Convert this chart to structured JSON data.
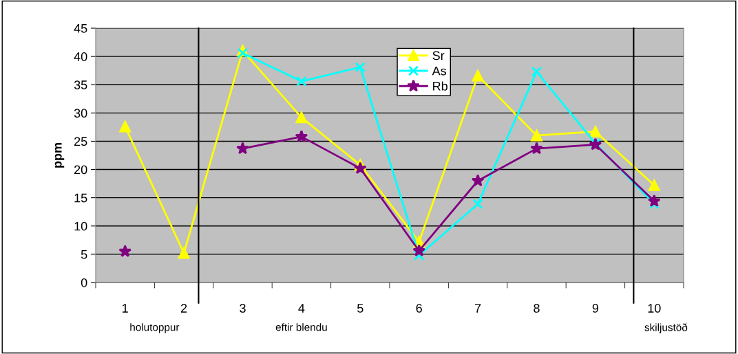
{
  "chart_data": {
    "type": "line",
    "ylabel": "ppm",
    "x": [
      1,
      2,
      3,
      4,
      5,
      6,
      7,
      8,
      9,
      10
    ],
    "series": [
      {
        "name": "Sr",
        "color": "#ffff00",
        "marker": "triangle",
        "values": [
          27.6,
          5.2,
          41.0,
          29.2,
          20.8,
          7.2,
          36.6,
          26.0,
          26.7,
          17.2
        ]
      },
      {
        "name": "As",
        "color": "#00ffff",
        "marker": "cross",
        "values": [
          null,
          null,
          40.6,
          35.6,
          38.1,
          4.8,
          13.9,
          37.3,
          24.6,
          13.9
        ]
      },
      {
        "name": "Rb",
        "color": "#800080",
        "marker": "star",
        "values": [
          5.5,
          null,
          23.7,
          25.8,
          20.2,
          5.6,
          18.0,
          23.7,
          24.4,
          14.4
        ]
      }
    ],
    "xlim": [
      0.5,
      10.5
    ],
    "xticks": [
      {
        "value": 0.5,
        "label": null
      },
      1,
      {
        "value": 1.5,
        "label": null
      },
      2,
      {
        "value": 2.5,
        "label": null
      },
      3,
      {
        "value": 3.5,
        "label": null
      },
      4,
      {
        "value": 4.5,
        "label": null
      },
      5,
      {
        "value": 5.5,
        "label": null
      },
      6,
      {
        "value": 6.5,
        "label": null
      },
      7,
      {
        "value": 7.5,
        "label": null
      },
      8,
      {
        "value": 8.5,
        "label": null
      },
      9,
      {
        "value": 9.5,
        "label": null
      },
      10,
      {
        "value": 10.5,
        "label": null
      }
    ],
    "ylim": [
      0,
      45
    ],
    "yticks": [
      0,
      5,
      10,
      15,
      20,
      25,
      30,
      35,
      40,
      45
    ],
    "grid": "y",
    "legend": "top",
    "ref_lines": [
      {
        "axis": "x",
        "value": 2.25,
        "color": "#000000"
      },
      {
        "axis": "x",
        "value": 9.65,
        "color": "#000000"
      }
    ],
    "annotations": [
      "holutoppur",
      "eftir blendu",
      "skiljustöð"
    ]
  }
}
